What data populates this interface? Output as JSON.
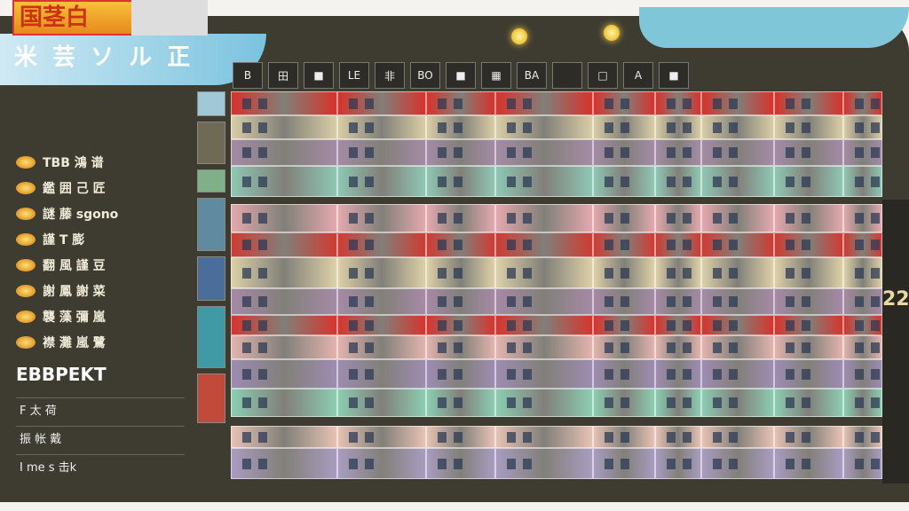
{
  "app": {
    "logo_text": "国茎白",
    "banner_text": "米 芸 ソ ル 正"
  },
  "sidebar": {
    "items": [
      {
        "label": "TBB 鴻 谱"
      },
      {
        "label": "鑑 囲 己 匠"
      },
      {
        "label": "謎 藤 sgono"
      },
      {
        "label": "謹 T 膨"
      },
      {
        "label": "翻 風 謹 豆"
      },
      {
        "label": "謝 鳳 謝 菜"
      },
      {
        "label": "襲 藻 彌 嵐"
      },
      {
        "label": "襟 灘 嵐 鷺"
      }
    ],
    "section_title": "EBBPEKT",
    "sub_items": [
      {
        "label": "F 太 荷"
      },
      {
        "label": "振 帐 戴"
      },
      {
        "label": "I me s 击k"
      }
    ]
  },
  "header_tabs": [
    "B",
    "田",
    "■",
    "LE",
    "非",
    "BO",
    "■",
    "▦",
    "BA",
    "",
    "□",
    "A",
    "■"
  ],
  "right_panel": {
    "value": "22"
  },
  "columns": [
    260,
    380,
    480,
    558,
    668,
    738,
    790,
    872,
    950,
    994
  ],
  "rows": [
    {
      "color": "#d8322c",
      "top": 103,
      "h": 27
    },
    {
      "color": "#d9cda6",
      "top": 130,
      "h": 27
    },
    {
      "color": "#a48ba5",
      "top": 157,
      "h": 30
    },
    {
      "color": "#8fc7b4",
      "top": 187,
      "h": 35
    },
    {
      "color": "#e3a9ad",
      "top": 230,
      "h": 32
    },
    {
      "color": "#cf3b33",
      "top": 262,
      "h": 28
    },
    {
      "color": "#ddd0a8",
      "top": 290,
      "h": 35
    },
    {
      "color": "#a58aa6",
      "top": 325,
      "h": 30
    },
    {
      "color": "#d8342e",
      "top": 355,
      "h": 23
    },
    {
      "color": "#e3b3ae",
      "top": 378,
      "h": 27
    },
    {
      "color": "#9e8cb2",
      "top": 405,
      "h": 33
    },
    {
      "color": "#8ccdb2",
      "top": 438,
      "h": 32
    },
    {
      "color": "#e6c2b4",
      "top": 480,
      "h": 25
    },
    {
      "color": "#a99cc0",
      "top": 505,
      "h": 35
    }
  ]
}
